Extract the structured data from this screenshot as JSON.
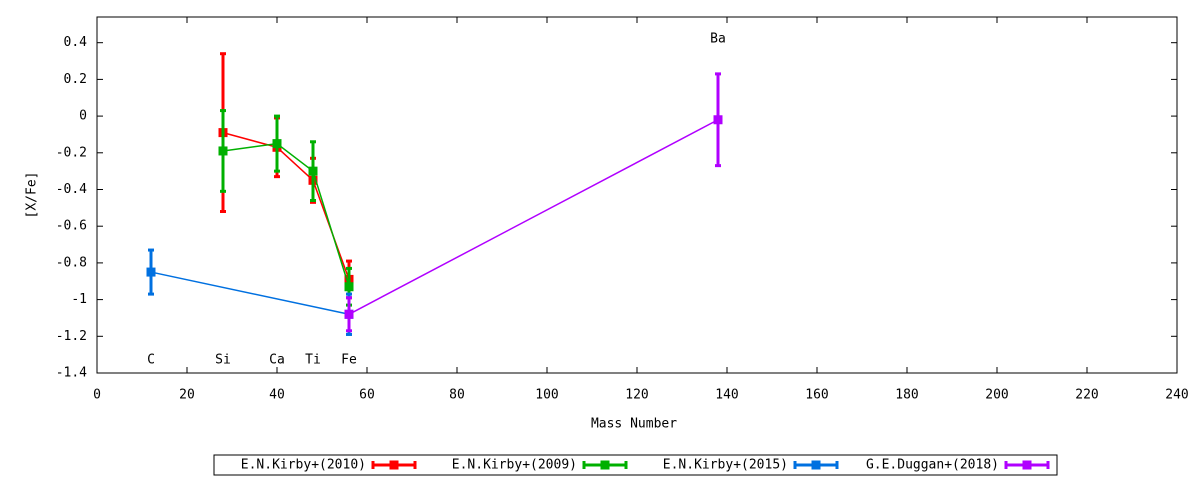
{
  "chart_data": {
    "type": "line",
    "xlabel": "Mass Number",
    "ylabel": "[X/Fe]",
    "xlim": [
      0,
      240
    ],
    "xticks": [
      0,
      20,
      40,
      60,
      80,
      100,
      120,
      140,
      160,
      180,
      200,
      220,
      240
    ],
    "ylim": [
      -1.4,
      0.54
    ],
    "yticks": [
      -1.4,
      -1.2,
      -1,
      -0.8,
      -0.6,
      -0.4,
      -0.2,
      0,
      0.2,
      0.4
    ],
    "series": [
      {
        "name": "E.N.Kirby+(2010)",
        "color": "#ff0000",
        "x": [
          28,
          40,
          48,
          56
        ],
        "values": [
          -0.09,
          -0.17,
          -0.35,
          -0.89
        ],
        "errors": [
          0.43,
          0.16,
          0.12,
          0.1
        ]
      },
      {
        "name": "E.N.Kirby+(2009)",
        "color": "#00b000",
        "x": [
          28,
          40,
          48,
          56
        ],
        "values": [
          -0.19,
          -0.15,
          -0.3,
          -0.93
        ],
        "errors": [
          0.22,
          0.15,
          0.16,
          0.1
        ]
      },
      {
        "name": "E.N.Kirby+(2015)",
        "color": "#0070e0",
        "x": [
          12,
          56
        ],
        "values": [
          -0.85,
          -1.08
        ],
        "errors": [
          0.12,
          0.11
        ]
      },
      {
        "name": "G.E.Duggan+(2018)",
        "color": "#b000ff",
        "x": [
          56,
          138
        ],
        "values": [
          -1.08,
          -0.02
        ],
        "errors": [
          0.09,
          0.25
        ]
      }
    ],
    "annotations": [
      {
        "text": "C",
        "x": 12,
        "y": -1.33
      },
      {
        "text": "Si",
        "x": 28,
        "y": -1.33
      },
      {
        "text": "Ca",
        "x": 40,
        "y": -1.33
      },
      {
        "text": "Ti",
        "x": 48,
        "y": -1.33
      },
      {
        "text": "Fe",
        "x": 56,
        "y": -1.33
      },
      {
        "text": "Ba",
        "x": 138,
        "y": 0.42
      }
    ]
  }
}
